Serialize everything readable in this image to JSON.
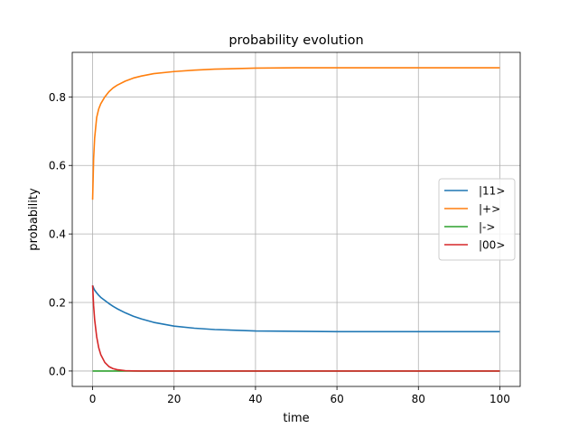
{
  "chart_data": {
    "type": "line",
    "title": "probability evolution",
    "xlabel": "time",
    "ylabel": "probability",
    "xlim": [
      -5,
      105
    ],
    "ylim": [
      -0.045,
      0.93
    ],
    "xticks": [
      0,
      20,
      40,
      60,
      80,
      100
    ],
    "xtick_labels": [
      "0",
      "20",
      "40",
      "60",
      "80",
      "100"
    ],
    "yticks": [
      0.0,
      0.2,
      0.4,
      0.6,
      0.8
    ],
    "ytick_labels": [
      "0.0",
      "0.2",
      "0.4",
      "0.6",
      "0.8"
    ],
    "grid": true,
    "legend_position": "center-right",
    "x": [
      0,
      0.25,
      0.5,
      1,
      1.5,
      2,
      3,
      4,
      5,
      6,
      8,
      10,
      12,
      15,
      20,
      25,
      30,
      40,
      50,
      60,
      70,
      80,
      90,
      100
    ],
    "series": [
      {
        "name": "|11>",
        "color": "#1f77b4",
        "values": [
          0.25,
          0.242,
          0.236,
          0.228,
          0.221,
          0.215,
          0.206,
          0.197,
          0.189,
          0.182,
          0.17,
          0.16,
          0.152,
          0.142,
          0.131,
          0.125,
          0.121,
          0.117,
          0.116,
          0.115,
          0.115,
          0.115,
          0.115,
          0.115
        ]
      },
      {
        "name": "|+>",
        "color": "#ff7f0e",
        "values": [
          0.5,
          0.62,
          0.68,
          0.74,
          0.765,
          0.78,
          0.8,
          0.815,
          0.826,
          0.834,
          0.846,
          0.855,
          0.861,
          0.868,
          0.874,
          0.878,
          0.881,
          0.884,
          0.885,
          0.885,
          0.885,
          0.885,
          0.885,
          0.885
        ]
      },
      {
        "name": "|->",
        "color": "#2ca02c",
        "values": [
          0,
          0,
          0,
          0,
          0,
          0,
          0,
          0,
          0,
          0,
          0,
          0,
          0,
          0,
          0,
          0,
          0,
          0,
          0,
          0,
          0,
          0,
          0,
          0
        ]
      },
      {
        "name": "|00>",
        "color": "#d62728",
        "values": [
          0.25,
          0.19,
          0.15,
          0.1,
          0.068,
          0.048,
          0.025,
          0.013,
          0.007,
          0.004,
          0.001,
          0.0003,
          0.0001,
          0,
          0,
          0,
          0,
          0,
          0,
          0,
          0,
          0,
          0,
          0
        ]
      }
    ]
  }
}
